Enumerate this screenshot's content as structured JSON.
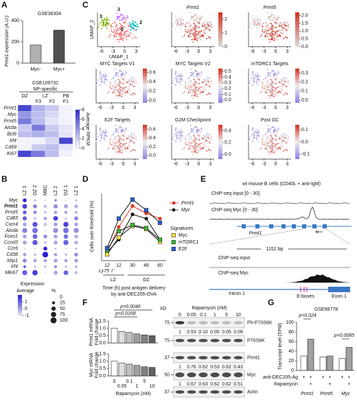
{
  "panel_labels": [
    "A",
    "B",
    "C",
    "D",
    "E",
    "F",
    "G"
  ],
  "a_bar": {
    "title": "GSE38304",
    "y_label": "Prmt1 expression (A.U.)",
    "ylim": [
      0,
      400
    ],
    "yticks": [
      0,
      200,
      400
    ],
    "categories": [
      "Myc-",
      "Myc+"
    ],
    "values": [
      170,
      310
    ],
    "colors": [
      "#b0b0b0",
      "#505050"
    ]
  },
  "a_heatmap": {
    "dataset": "GSE109732",
    "group": "NP-specific",
    "columns": [
      "DZ",
      "LZ",
      "PB"
    ],
    "subcolumns": [
      "F3",
      "F2",
      "F1"
    ],
    "rows": [
      "Prmt1",
      "Myc",
      "Prmt5",
      "Aicda",
      "Bcl6",
      "Irf4",
      "Cd69",
      "Ki67"
    ],
    "values": [
      [
        7,
        3,
        2,
        0.5
      ],
      [
        4,
        2.5,
        1.5,
        0.5
      ],
      [
        5,
        2.5,
        1,
        0.5
      ],
      [
        2,
        5,
        2,
        1
      ],
      [
        2.5,
        3,
        2.5,
        1
      ],
      [
        0.5,
        0.5,
        1.5,
        7
      ],
      [
        0.5,
        2,
        2.5,
        1
      ],
      [
        7,
        5,
        2.5,
        0.5
      ]
    ],
    "vlim": [
      0,
      8
    ],
    "colorbar_ticks": [
      0,
      2,
      4,
      6,
      8
    ],
    "colorbar_label": "Average RPKM"
  },
  "b_dotplot": {
    "columns": [
      "LZ 3",
      "DZ 2",
      "MBC",
      "LZ 2",
      "DZ 1",
      "LZ 1"
    ],
    "rows": [
      "Myc",
      "Prmt1",
      "Prmt5",
      "Cd83",
      "Cxcr4",
      "Aicda",
      "Foxo1",
      "Ccnd3",
      "Ccr6",
      "Cd38",
      "Xbp1",
      "Irf4",
      "Mki67"
    ],
    "pct": [
      [
        40,
        10,
        5,
        15,
        5,
        10
      ],
      [
        60,
        45,
        30,
        50,
        45,
        40
      ],
      [
        40,
        30,
        20,
        30,
        25,
        25
      ],
      [
        50,
        20,
        30,
        60,
        15,
        45
      ],
      [
        40,
        70,
        30,
        40,
        70,
        40
      ],
      [
        70,
        80,
        10,
        70,
        80,
        70
      ],
      [
        40,
        60,
        40,
        40,
        55,
        40
      ],
      [
        40,
        70,
        20,
        40,
        70,
        40
      ],
      [
        5,
        5,
        40,
        10,
        5,
        10
      ],
      [
        30,
        20,
        90,
        30,
        20,
        40
      ],
      [
        40,
        30,
        30,
        40,
        30,
        40
      ],
      [
        20,
        10,
        10,
        20,
        10,
        15
      ],
      [
        70,
        80,
        10,
        40,
        60,
        30
      ]
    ],
    "avg": [
      [
        2,
        0,
        -0.5,
        0.5,
        -0.5,
        0
      ],
      [
        1.5,
        0.5,
        -0.5,
        0.3,
        0,
        -0.3
      ],
      [
        1,
        0.5,
        -0.5,
        0,
        0,
        -0.3
      ],
      [
        1,
        -0.5,
        0,
        1.5,
        -0.5,
        0.5
      ],
      [
        0,
        1.2,
        -0.5,
        0,
        1.5,
        0
      ],
      [
        0.5,
        0.8,
        -1,
        0.3,
        0.8,
        0.3
      ],
      [
        0,
        1,
        0.3,
        0,
        0.8,
        -0.2
      ],
      [
        0,
        1.2,
        -0.5,
        0,
        1,
        -0.2
      ],
      [
        -0.5,
        -0.5,
        2,
        -0.3,
        -0.5,
        0
      ],
      [
        0,
        -0.5,
        2,
        0,
        -0.5,
        0.3
      ],
      [
        0.5,
        0,
        0,
        0,
        0,
        0
      ],
      [
        1,
        0,
        0,
        0.5,
        0,
        0
      ],
      [
        1,
        1.5,
        -1,
        0,
        1,
        -0.5
      ]
    ],
    "avg_lim": [
      -1,
      2
    ],
    "legend_title": "Expression",
    "avg_label": "Average",
    "avg_ticks": [
      1,
      0,
      -1
    ],
    "pct_label": "%",
    "pct_ticks": [
      0,
      25,
      50,
      75,
      100
    ]
  },
  "c_umap": {
    "x_label": "UMAP_1",
    "y_label": "UMAP_2",
    "xlim": [
      -7,
      4
    ],
    "xticks": [
      -6,
      -3,
      0,
      3
    ],
    "clusters": [
      "0",
      "1",
      "2",
      "3"
    ],
    "cluster_colors": [
      "#f08080",
      "#7cae00",
      "#00bfc4",
      "#c77cff"
    ],
    "plots": [
      {
        "title": "Prmt1",
        "scheme": "gene",
        "clim": [
          0,
          2.5
        ],
        "cticks": [
          0,
          1,
          2
        ]
      },
      {
        "title": "Prmt5",
        "scheme": "gene",
        "clim": [
          0,
          2.2
        ],
        "cticks": [
          {
            "value": 0,
            "label": "0.0"
          },
          0.5,
          {
            "value": 1,
            "label": "1.0"
          },
          1.5,
          {
            "value": 2,
            "label": "2.0"
          }
        ]
      },
      {
        "title": "MYC Targets V1",
        "scheme": "module",
        "clim": [
          -0.05,
          0.68
        ],
        "cticks": [
          {
            "value": 0,
            "label": "0.0"
          },
          0.2,
          0.4,
          0.6
        ]
      },
      {
        "title": "MYC Targets V2",
        "scheme": "module",
        "clim": [
          -0.05,
          0.55
        ],
        "cticks": [
          {
            "value": 0,
            "label": "0.0"
          },
          0.1,
          0.2,
          0.3,
          0.4,
          0.5
        ]
      },
      {
        "title": "mTORC1 Targets",
        "scheme": "module",
        "clim": [
          -0.03,
          0.35
        ],
        "cticks": [
          {
            "value": 0,
            "label": "0.0"
          },
          0.1,
          0.2,
          0.3
        ]
      },
      {
        "title": "E2F Targets",
        "scheme": "module",
        "clim": [
          -0.08,
          0.7
        ],
        "cticks": [
          {
            "value": 0,
            "label": "0.0"
          },
          0.2,
          0.4,
          0.6
        ]
      },
      {
        "title": "G2M Checkpoint",
        "scheme": "module",
        "clim": [
          -0.08,
          0.5
        ],
        "cticks": [
          {
            "value": 0,
            "label": "0.0"
          },
          0.2,
          0.4
        ]
      },
      {
        "title": "Post GC",
        "scheme": "module",
        "clim": [
          -0.14,
          0.14
        ],
        "cticks": [
          -0.1,
          {
            "value": 0,
            "label": "0.0"
          },
          0.1
        ]
      }
    ]
  },
  "d_line": {
    "y_label": "Cells over threshold (%)",
    "ylim": [
      0,
      60
    ],
    "categories": [
      "12",
      "12",
      "30",
      "46",
      "60"
    ],
    "strain": "Ly75⁻/⁻",
    "zones": [
      "LZ",
      "DZ"
    ],
    "x_label": [
      "Time (h) post antigen delivery",
      "by anti-DEC205-OVA"
    ],
    "legend_title": "Signatures",
    "series": [
      {
        "name": "Prmt1",
        "color": "#e0301e",
        "marker": "circle",
        "values": [
          8,
          32,
          52,
          45,
          40
        ]
      },
      {
        "name": "Myc",
        "color": "#111111",
        "marker": "circle",
        "values": [
          8,
          20,
          44,
          40,
          20
        ]
      },
      {
        "name": "Myc",
        "color": "#f0e040",
        "marker": "square",
        "values": [
          6,
          22,
          33,
          30,
          18
        ]
      },
      {
        "name": "mTORC1",
        "color": "#3cb83c",
        "marker": "square",
        "values": [
          10,
          28,
          34,
          31,
          20
        ]
      },
      {
        "name": "E2F",
        "color": "#2a5fd6",
        "marker": "square",
        "values": [
          12,
          40,
          58,
          48,
          36
        ]
      }
    ]
  },
  "e_tracks": {
    "title": "wt mouse B cells (CD40L + anti-IgM)",
    "input_label": "ChIP-seq input [0 - 30]",
    "myc_label": "ChIP-seq Myc [0 - 30]",
    "gene": "Prmt1",
    "zoom_length": "1152 bp",
    "zoom_input_label": "ChIP-seq input",
    "zoom_myc_label": "ChIP-seq Myc",
    "intron": "Intron 1",
    "eboxes": "E-boxes",
    "exon": "Exon 1"
  },
  "f_qpcr": {
    "x_label": "Rapamycin (nM)",
    "doses": [
      "0",
      "0.05",
      "0.1",
      "1",
      "5",
      "10"
    ],
    "ylim": [
      0,
      1.5
    ],
    "yticks": [
      {
        "value": 0,
        "label": "0.0"
      },
      0.5,
      {
        "value": 1,
        "label": "1.0"
      },
      1.5
    ],
    "colors": [
      "#ffffff",
      "#e0e0e0",
      "#c0c0c0",
      "#a0a0a0",
      "#808080",
      "#606060"
    ],
    "charts": [
      {
        "y_label": [
          "Prmt1 mRNA",
          "Fold change"
        ],
        "values": [
          1,
          0.78,
          0.72,
          0.62,
          0.55,
          0.5
        ],
        "pvalues": [
          "p=0.0046",
          "p=0.0168"
        ]
      },
      {
        "y_label": [
          "Myc mRNA",
          "Fold change"
        ],
        "values": [
          1,
          0.88,
          0.8,
          0.72,
          0.62,
          0.58
        ]
      }
    ]
  },
  "f_blot": {
    "unit": "kD",
    "markers": [
      "75",
      "75",
      "37",
      "50",
      "37"
    ],
    "rows": [
      "Ph-P70S6K",
      "P70S6K",
      "Prmt1",
      "Myc",
      "Actin"
    ],
    "quant": {
      "Ph-P70S6K": [
        "1",
        "0.53",
        "0.10",
        "0.05",
        "0.05",
        "0.09"
      ],
      "Prmt1": [
        "1",
        "0.76",
        "0.62",
        "0.53",
        "0.62",
        "0.43"
      ],
      "Myc": [
        "1",
        "0.67",
        "0.63",
        "0.62",
        "0.62",
        "0.51"
      ]
    }
  },
  "g_bar": {
    "dataset": "GSE98778",
    "y_label": "Transcript level (TPM)",
    "ylim": [
      0,
      100
    ],
    "yticks": [
      0,
      20,
      40,
      60,
      80,
      100
    ],
    "genes": [
      "Prmt1",
      "Prmt5",
      "Myc"
    ],
    "values": [
      [
        30,
        65
      ],
      [
        28,
        30
      ],
      [
        25,
        48
      ]
    ],
    "colors": [
      "#ffffff",
      "#a0a0a0"
    ],
    "treatments": [
      "anti-DEC205-Ag",
      "Rapamycin"
    ],
    "plus": "+",
    "pvalues": [
      "p=0.024",
      "p=0.0085"
    ]
  }
}
